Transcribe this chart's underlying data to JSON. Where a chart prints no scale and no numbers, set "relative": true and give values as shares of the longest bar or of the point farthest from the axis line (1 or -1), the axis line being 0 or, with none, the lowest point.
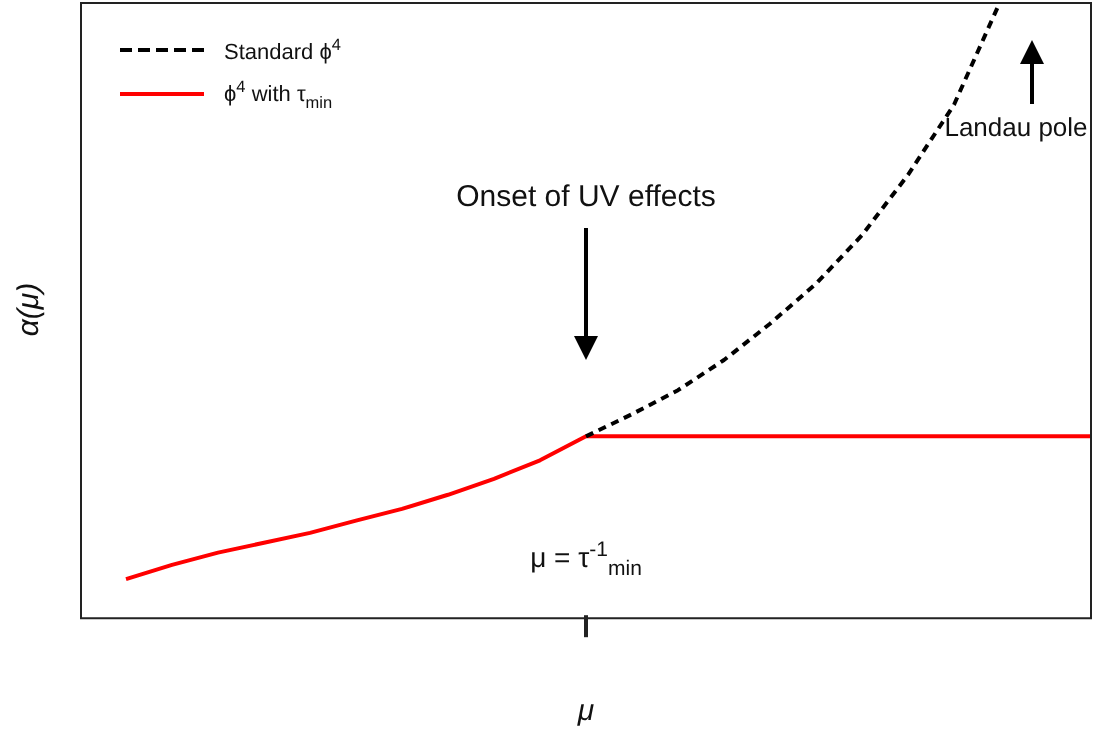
{
  "chart_data": {
    "type": "line",
    "relative": true,
    "xlabel": "μ",
    "ylabel": "α(μ)",
    "legend": "top left",
    "categories": [
      null,
      null,
      null,
      null,
      null,
      null,
      null,
      null,
      null,
      null,
      null,
      null,
      null,
      null,
      null,
      null,
      null,
      null,
      null,
      null,
      null,
      null,
      null
    ],
    "series": [
      {
        "name": "Standard ϕ$^{4}$",
        "color": "#000000",
        "line_style": "dashed",
        "values": [
          null,
          null,
          null,
          null,
          null,
          null,
          null,
          null,
          null,
          null,
          null,
          0.294,
          0.33,
          0.369,
          0.418,
          0.477,
          0.542,
          0.621,
          0.719,
          0.833,
          1,
          null,
          null
        ]
      },
      {
        "name": "ϕ$^{4}$ with τ$_{min}$",
        "color": "#ff0000",
        "line_style": "solid",
        "values": [
          null,
          0.062,
          0.085,
          0.105,
          0.121,
          0.137,
          0.157,
          0.176,
          0.199,
          0.225,
          0.255,
          0.294,
          0.294,
          0.294,
          0.294,
          0.294,
          0.294,
          0.294,
          0.294,
          0.294,
          0.294,
          0.294,
          0.294
        ]
      }
    ],
    "annotations": [
      "Onset of UV effects",
      "Landau pole",
      "μ =  τ$^{-1}$$_{min}$"
    ],
    "marker": "none"
  }
}
